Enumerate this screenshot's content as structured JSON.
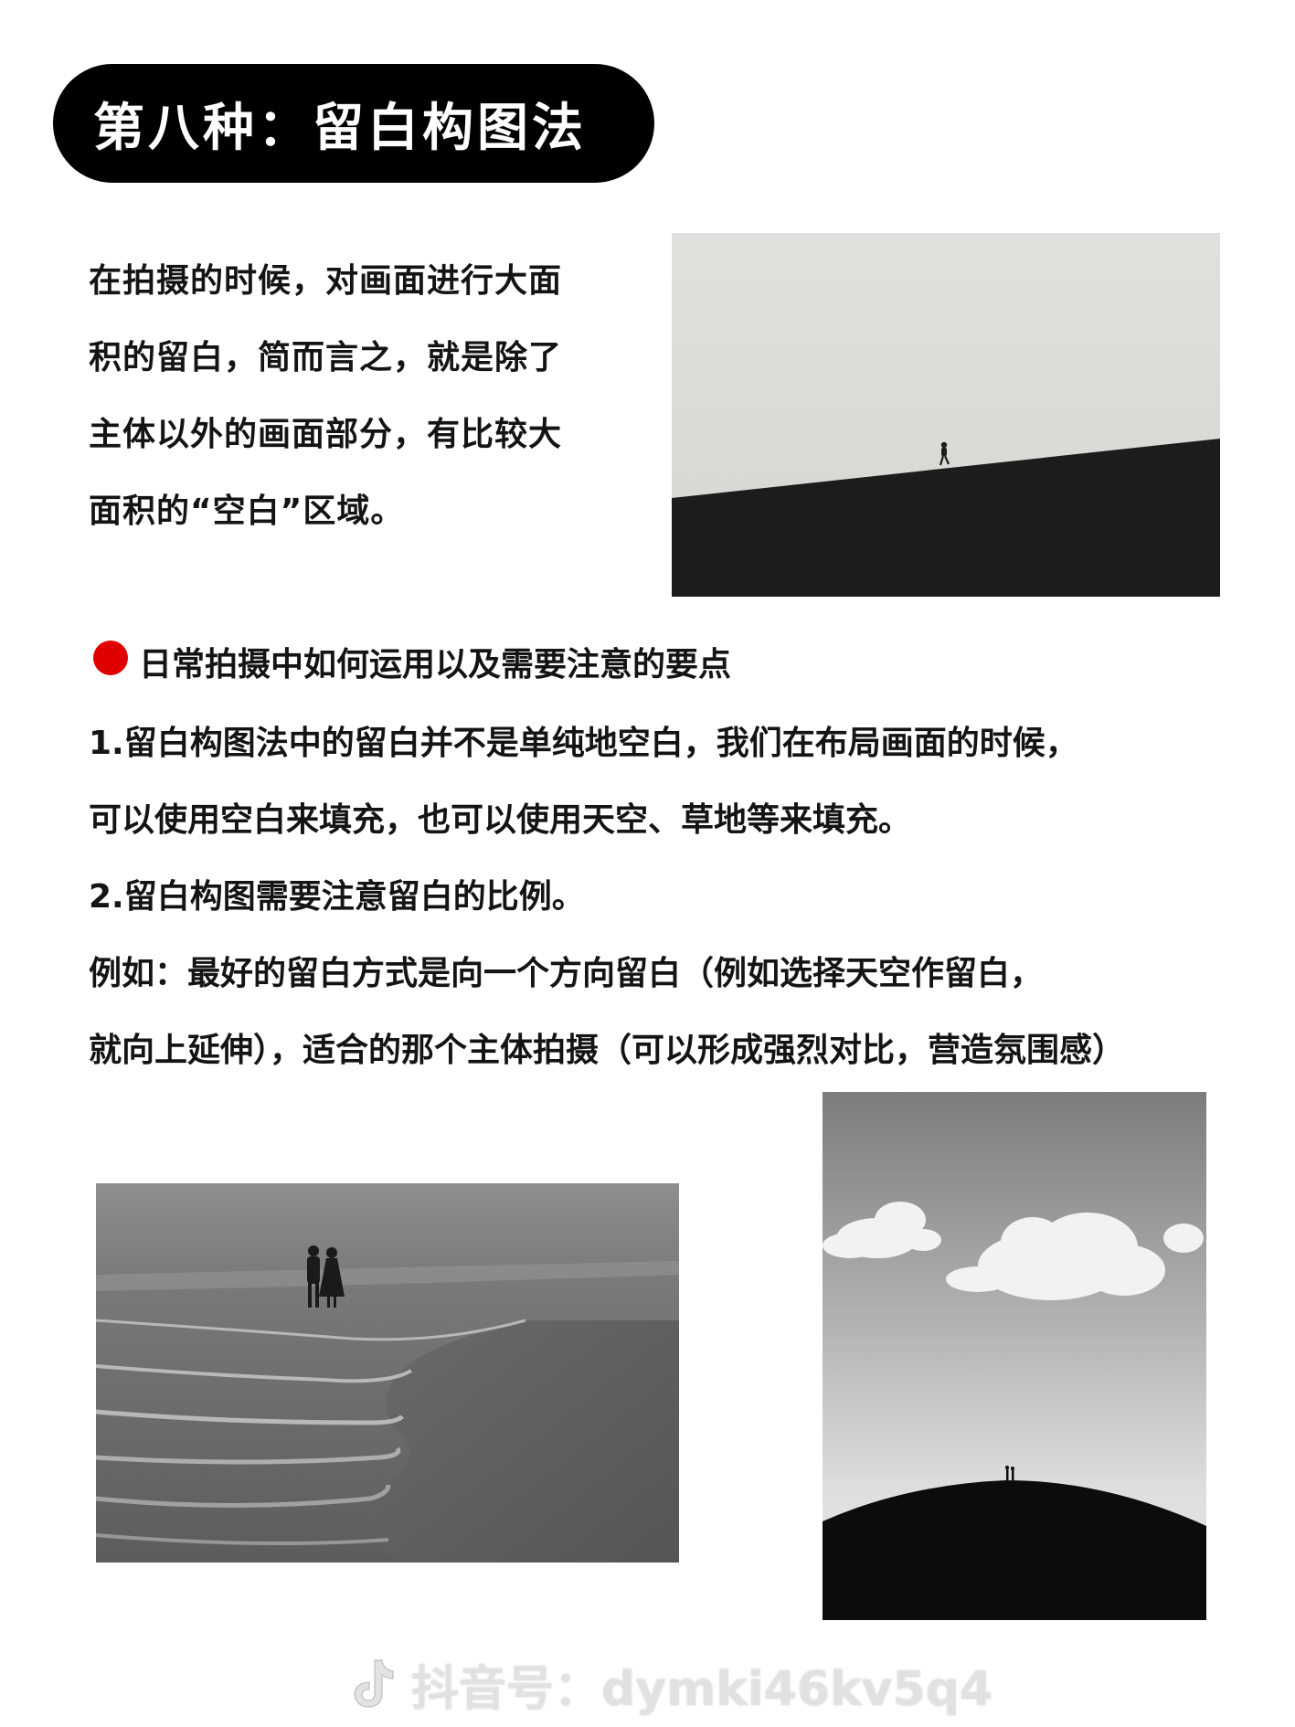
{
  "title": "第八种：留白构图法",
  "intro": {
    "lines": [
      "在拍摄的时候，对画面进行大面",
      "积的留白，简而言之，就是除了",
      "主体以外的画面部分，有比较大",
      "面积的“空白”区域。"
    ]
  },
  "tips": {
    "heading": "日常拍摄中如何运用以及需要注意的要点",
    "lines": [
      "1.留白构图法中的留白并不是单纯地空白，我们在布局画面的时候，",
      "可以使用空白来填充，也可以使用天空、草地等来填充。",
      "2.留白构图需要注意留白的比例。",
      "例如：最好的留白方式是向一个方向留白（例如选择天空作留白，",
      "就向上延伸），适合的那个主体拍摄（可以形成强烈对比，营造氛围感）"
    ]
  },
  "watermark": {
    "icon": "douyin-logo-icon",
    "text": "抖音号：dymki46kv5q4"
  },
  "colors": {
    "title_bg": "#000000",
    "title_text": "#ffffff",
    "bullet": "#e00000",
    "body_text": "#141414"
  }
}
